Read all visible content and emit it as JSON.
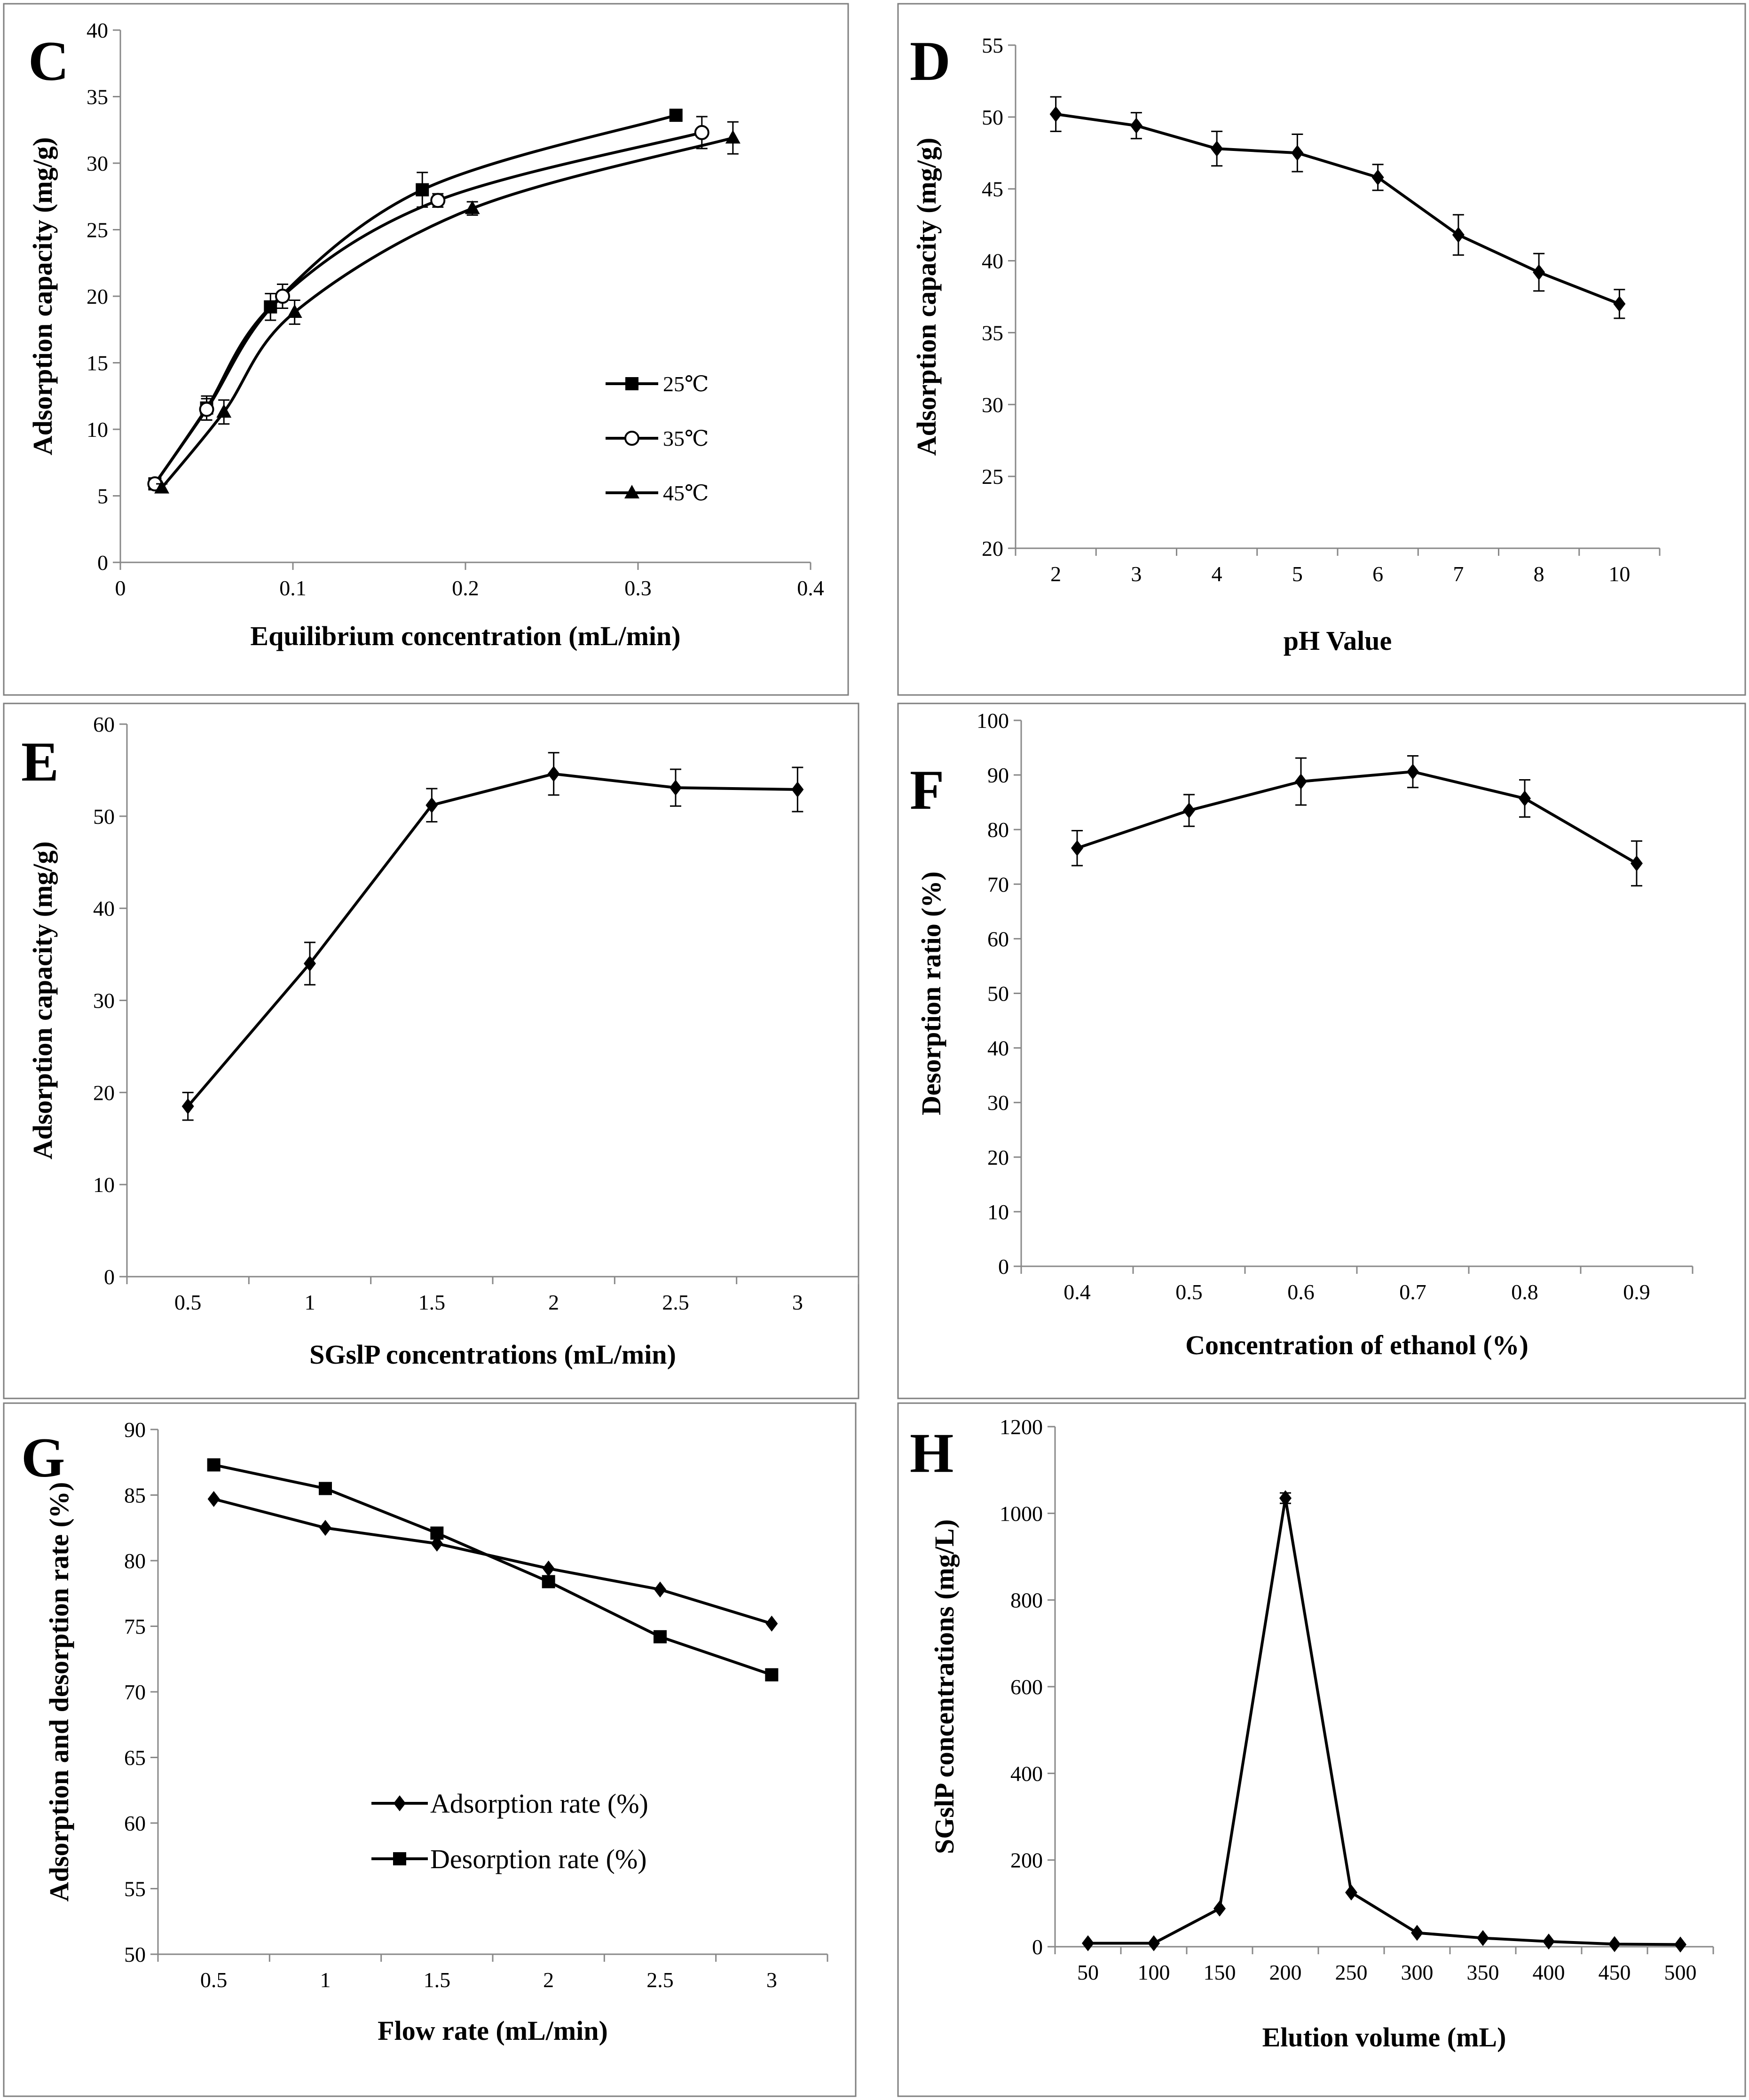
{
  "chart_data": [
    {
      "panel_label": "C",
      "type": "line",
      "xlabel": "Equilibrium concentration (mL/min)",
      "ylabel": "Adsorption capacity (mg/g)",
      "xlim": [
        0,
        0.4
      ],
      "xticks": [
        0,
        0.1,
        0.2,
        0.3,
        0.4
      ],
      "xtick_labels": [
        "0",
        "0.1",
        "0.2",
        "0.3",
        "0.4"
      ],
      "ylim": [
        0,
        40
      ],
      "yticks": [
        0,
        5,
        10,
        15,
        20,
        25,
        30,
        35,
        40
      ],
      "ytick_labels": [
        "0",
        "5",
        "10",
        "15",
        "20",
        "25",
        "30",
        "35",
        "40"
      ],
      "legend_position": "right-center",
      "smooth": true,
      "series": [
        {
          "name": "25℃",
          "marker": "square",
          "x": [
            0.02,
            0.05,
            0.087,
            0.175,
            0.322
          ],
          "y": [
            5.9,
            11.6,
            19.2,
            28.0,
            33.6
          ],
          "err": [
            0.4,
            0.9,
            1.0,
            1.3,
            0
          ]
        },
        {
          "name": "35℃",
          "marker": "circle-open",
          "x": [
            0.02,
            0.05,
            0.094,
            0.184,
            0.337
          ],
          "y": [
            5.9,
            11.5,
            20.0,
            27.2,
            32.3
          ],
          "err": [
            0.3,
            0.8,
            0.9,
            0.5,
            1.2
          ]
        },
        {
          "name": "45℃",
          "marker": "triangle",
          "x": [
            0.024,
            0.06,
            0.101,
            0.204,
            0.355
          ],
          "y": [
            5.6,
            11.3,
            18.8,
            26.6,
            31.9
          ],
          "err": [
            0.3,
            0.9,
            0.9,
            0.5,
            1.2
          ]
        }
      ]
    },
    {
      "panel_label": "D",
      "type": "line",
      "xlabel": "pH Value",
      "ylabel": "Adsorption capacity (mg/g)",
      "categories": [
        "2",
        "3",
        "4",
        "5",
        "6",
        "7",
        "8",
        "10"
      ],
      "ylim": [
        20,
        55
      ],
      "yticks": [
        20,
        25,
        30,
        35,
        40,
        45,
        50,
        55
      ],
      "ytick_labels": [
        "20",
        "25",
        "30",
        "35",
        "40",
        "45",
        "50",
        "55"
      ],
      "series": [
        {
          "name": "Adsorption capacity",
          "marker": "diamond",
          "values": [
            50.2,
            49.4,
            47.8,
            47.5,
            45.8,
            41.8,
            39.2,
            37.0
          ],
          "err": [
            1.2,
            0.9,
            1.2,
            1.3,
            0.9,
            1.4,
            1.3,
            1.0
          ]
        }
      ]
    },
    {
      "panel_label": "E",
      "type": "line",
      "xlabel": "SGslP concentrations (mL/min)",
      "ylabel": "Adsorption capacity (mg/g)",
      "categories": [
        "0.5",
        "1",
        "1.5",
        "2",
        "2.5",
        "3"
      ],
      "ylim": [
        0,
        60
      ],
      "yticks": [
        0,
        10,
        20,
        30,
        40,
        50,
        60
      ],
      "ytick_labels": [
        "0",
        "10",
        "20",
        "30",
        "40",
        "50",
        "60"
      ],
      "series": [
        {
          "name": "Adsorption capacity",
          "marker": "diamond",
          "values": [
            18.5,
            34.0,
            51.2,
            54.6,
            53.1,
            52.9
          ],
          "err": [
            1.5,
            2.3,
            1.8,
            2.3,
            2.0,
            2.4
          ]
        }
      ]
    },
    {
      "panel_label": "F",
      "type": "line",
      "xlabel": "Concentration of ethanol (%)",
      "ylabel": "Desorption ratio (%)",
      "categories": [
        "0.4",
        "0.5",
        "0.6",
        "0.7",
        "0.8",
        "0.9"
      ],
      "ylim": [
        0,
        100
      ],
      "yticks": [
        0,
        10,
        20,
        30,
        40,
        50,
        60,
        70,
        80,
        90,
        100
      ],
      "ytick_labels": [
        "0",
        "10",
        "20",
        "30",
        "40",
        "50",
        "60",
        "70",
        "80",
        "90",
        "100"
      ],
      "series": [
        {
          "name": "Desorption ratio",
          "marker": "diamond",
          "values": [
            76.6,
            83.5,
            88.8,
            90.6,
            85.7,
            73.8
          ],
          "err": [
            3.2,
            2.9,
            4.3,
            2.9,
            3.4,
            4.1
          ]
        }
      ]
    },
    {
      "panel_label": "G",
      "type": "line",
      "xlabel": "Flow rate (mL/min)",
      "ylabel": "Adsorption and desorption rate (%)",
      "categories": [
        "0.5",
        "1",
        "1.5",
        "2",
        "2.5",
        "3"
      ],
      "ylim": [
        50,
        90
      ],
      "yticks": [
        50,
        55,
        60,
        65,
        70,
        75,
        80,
        85,
        90
      ],
      "ytick_labels": [
        "50",
        "55",
        "60",
        "65",
        "70",
        "75",
        "80",
        "85",
        "90"
      ],
      "legend_position": "lower-center",
      "series": [
        {
          "name": "Adsorption rate (%)",
          "marker": "diamond",
          "values": [
            84.7,
            82.5,
            81.3,
            79.4,
            77.8,
            75.2
          ]
        },
        {
          "name": "Desorption rate (%)",
          "marker": "square",
          "values": [
            87.3,
            85.5,
            82.1,
            78.4,
            74.2,
            71.3
          ]
        }
      ]
    },
    {
      "panel_label": "H",
      "type": "line",
      "xlabel": "Elution volume (mL)",
      "ylabel": "SGslP concentrations (mg/L)",
      "categories": [
        "50",
        "100",
        "150",
        "200",
        "250",
        "300",
        "350",
        "400",
        "450",
        "500"
      ],
      "ylim": [
        0,
        1200
      ],
      "yticks": [
        0,
        200,
        400,
        600,
        800,
        1000,
        1200
      ],
      "ytick_labels": [
        "0",
        "200",
        "400",
        "600",
        "800",
        "1000",
        "1200"
      ],
      "series": [
        {
          "name": "SGslP concentration",
          "marker": "diamond",
          "values": [
            8,
            8,
            88,
            1035,
            125,
            32,
            20,
            12,
            6,
            5
          ],
          "err": [
            0,
            0,
            0,
            12,
            0,
            0,
            0,
            0,
            0,
            0
          ]
        }
      ]
    }
  ]
}
